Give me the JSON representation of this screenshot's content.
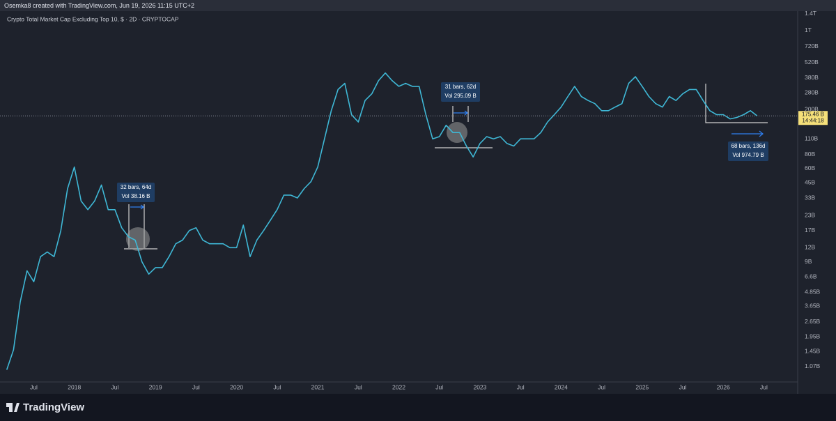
{
  "header": "Osemka8 created with TradingView.com, Jun 19, 2026 11:15 UTC+2",
  "brand": "TradingView",
  "chart_data": {
    "type": "line",
    "title": "Crypto Total Market Cap Excluding Top 10, $ · 2D · CRYPTOCAP",
    "color": "#3fb8d6",
    "log_scale": true,
    "x": [
      "2017-03",
      "2017-04",
      "2017-05",
      "2017-06",
      "2017-07",
      "2017-08",
      "2017-09",
      "2017-10",
      "2017-11",
      "2017-12",
      "2018-01",
      "2018-02",
      "2018-03",
      "2018-04",
      "2018-05",
      "2018-06",
      "2018-07",
      "2018-08",
      "2018-09",
      "2018-10",
      "2018-11",
      "2018-12",
      "2019-01",
      "2019-02",
      "2019-03",
      "2019-04",
      "2019-05",
      "2019-06",
      "2019-07",
      "2019-08",
      "2019-09",
      "2019-10",
      "2019-11",
      "2019-12",
      "2020-01",
      "2020-02",
      "2020-03",
      "2020-04",
      "2020-05",
      "2020-06",
      "2020-07",
      "2020-08",
      "2020-09",
      "2020-10",
      "2020-11",
      "2020-12",
      "2021-01",
      "2021-02",
      "2021-03",
      "2021-04",
      "2021-05",
      "2021-06",
      "2021-07",
      "2021-08",
      "2021-09",
      "2021-10",
      "2021-11",
      "2021-12",
      "2022-01",
      "2022-02",
      "2022-03",
      "2022-04",
      "2022-05",
      "2022-06",
      "2022-07",
      "2022-08",
      "2022-09",
      "2022-10",
      "2022-11",
      "2022-12",
      "2023-01",
      "2023-02",
      "2023-03",
      "2023-04",
      "2023-05",
      "2023-06",
      "2023-07",
      "2023-08",
      "2023-09",
      "2023-10",
      "2023-11",
      "2023-12",
      "2024-01",
      "2024-02",
      "2024-03",
      "2024-04",
      "2024-05",
      "2024-06",
      "2024-07",
      "2024-08",
      "2024-09",
      "2024-10",
      "2024-11",
      "2024-12",
      "2025-01",
      "2025-02",
      "2025-03",
      "2025-04",
      "2025-05",
      "2025-06",
      "2025-07",
      "2025-08",
      "2025-09",
      "2025-10",
      "2025-11",
      "2025-12",
      "2026-01",
      "2026-02",
      "2026-03",
      "2026-04",
      "2026-05",
      "2026-06"
    ],
    "values": [
      1.0,
      1.5,
      4,
      7.5,
      6,
      10,
      11,
      10,
      17,
      40,
      62,
      31,
      26,
      31,
      43,
      26,
      26,
      18,
      15,
      14,
      9,
      7,
      8,
      8,
      10,
      13,
      14,
      17,
      18,
      14,
      13,
      13,
      13,
      12,
      12,
      19,
      10,
      14,
      17,
      21,
      26,
      35,
      35,
      33,
      40,
      46,
      62,
      110,
      195,
      300,
      340,
      180,
      155,
      240,
      275,
      360,
      420,
      360,
      320,
      340,
      320,
      320,
      180,
      110,
      115,
      145,
      125,
      125,
      95,
      76,
      100,
      115,
      110,
      115,
      100,
      95,
      110,
      110,
      110,
      125,
      155,
      180,
      210,
      260,
      320,
      260,
      240,
      225,
      195,
      195,
      210,
      225,
      340,
      390,
      320,
      260,
      225,
      210,
      260,
      240,
      275,
      300,
      300,
      240,
      195,
      180,
      180,
      165,
      170,
      180,
      195,
      175.46
    ],
    "xlim": [
      "2017-02",
      "2026-12"
    ],
    "xticks": [
      {
        "value": "2017-07",
        "label": "Jul"
      },
      {
        "value": "2018-01",
        "label": "2018"
      },
      {
        "value": "2018-07",
        "label": "Jul"
      },
      {
        "value": "2019-01",
        "label": "2019"
      },
      {
        "value": "2019-07",
        "label": "Jul"
      },
      {
        "value": "2020-01",
        "label": "2020"
      },
      {
        "value": "2020-07",
        "label": "Jul"
      },
      {
        "value": "2021-01",
        "label": "2021"
      },
      {
        "value": "2021-07",
        "label": "Jul"
      },
      {
        "value": "2022-01",
        "label": "2022"
      },
      {
        "value": "2022-07",
        "label": "Jul"
      },
      {
        "value": "2023-01",
        "label": "2023"
      },
      {
        "value": "2023-07",
        "label": "Jul"
      },
      {
        "value": "2024-01",
        "label": "2024"
      },
      {
        "value": "2024-07",
        "label": "Jul"
      },
      {
        "value": "2025-01",
        "label": "2025"
      },
      {
        "value": "2025-07",
        "label": "Jul"
      },
      {
        "value": "2026-01",
        "label": "2026"
      },
      {
        "value": "2026-07",
        "label": "Jul"
      }
    ],
    "ylim": [
      0.78,
      1500
    ],
    "yticks": [
      {
        "value": 1400,
        "label": "1.4T"
      },
      {
        "value": 1000,
        "label": "1T"
      },
      {
        "value": 720,
        "label": "720B"
      },
      {
        "value": 520,
        "label": "520B"
      },
      {
        "value": 380,
        "label": "380B"
      },
      {
        "value": 280,
        "label": "280B"
      },
      {
        "value": 200,
        "label": "200B"
      },
      {
        "value": 110,
        "label": "110B"
      },
      {
        "value": 80,
        "label": "80B"
      },
      {
        "value": 60,
        "label": "60B"
      },
      {
        "value": 45,
        "label": "45B"
      },
      {
        "value": 33,
        "label": "33B"
      },
      {
        "value": 23,
        "label": "23B"
      },
      {
        "value": 17,
        "label": "17B"
      },
      {
        "value": 12,
        "label": "12B"
      },
      {
        "value": 9,
        "label": "9B"
      },
      {
        "value": 6.6,
        "label": "6.6B"
      },
      {
        "value": 4.85,
        "label": "4.85B"
      },
      {
        "value": 3.65,
        "label": "3.65B"
      },
      {
        "value": 2.65,
        "label": "2.65B"
      },
      {
        "value": 1.95,
        "label": "1.95B"
      },
      {
        "value": 1.45,
        "label": "1.45B"
      },
      {
        "value": 1.07,
        "label": "1.07B"
      }
    ],
    "last_price": {
      "value": 175.46,
      "label": "175.46 B"
    },
    "countdown": "14:44:18",
    "annotations": [
      {
        "text": [
          "32 bars, 64d",
          "Vol 38.16 B"
        ]
      },
      {
        "text": [
          "31 bars, 62d",
          "Vol 295.09 B"
        ]
      },
      {
        "text": [
          "68 bars, 136d",
          "Vol 974.79 B"
        ]
      }
    ]
  }
}
